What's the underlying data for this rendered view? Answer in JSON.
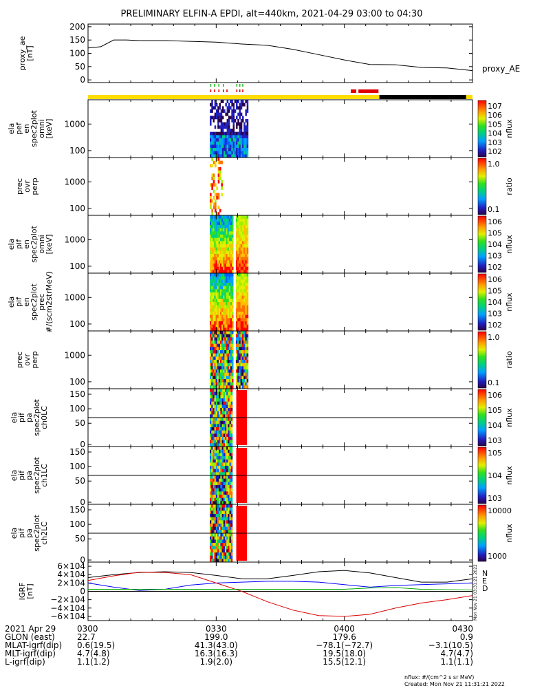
{
  "title": "PRELIMINARY ELFIN-A EPDI, alt=440km, 2021-04-29 03:00 to 04:30",
  "chart_data": [
    {
      "type": "line",
      "ylabel": "proxy_ae\n[nT]",
      "legend": "proxy_AE",
      "ylim": [
        -10,
        210
      ],
      "yticks": [
        "200",
        "150",
        "100",
        "50",
        "0"
      ],
      "x_minutes": [
        0,
        3,
        6,
        9,
        12,
        18,
        24,
        30,
        36,
        42,
        48,
        54,
        60,
        66,
        72,
        78,
        84,
        90
      ],
      "values": [
        120,
        125,
        150,
        150,
        148,
        148,
        145,
        142,
        135,
        130,
        115,
        95,
        75,
        58,
        57,
        47,
        45,
        35
      ]
    },
    {
      "type": "heatmap",
      "ylabel": "ela\npef\nen\nspec2plot\nomni\n[keV]",
      "yticks": [
        "1000",
        "100"
      ],
      "colorbar": {
        "ticks": [
          "10^7",
          "10^6",
          "10^5",
          "10^4",
          "10^3",
          "10^2"
        ],
        "label": "nflux"
      }
    },
    {
      "type": "heatmap",
      "ylabel": "prec\novr\nperp",
      "yticks": [
        "1000",
        "100"
      ],
      "colorbar": {
        "ticks": [
          "1.0",
          "0.1"
        ],
        "label": "ratio"
      }
    },
    {
      "type": "heatmap",
      "ylabel": "ela\npif\nen\nspec2plot\nomni\n[keV]",
      "yticks": [
        "1000",
        "100"
      ],
      "colorbar": {
        "ticks": [
          "10^6",
          "10^5",
          "10^4",
          "10^3",
          "10^2"
        ],
        "label": "nflux"
      }
    },
    {
      "type": "heatmap",
      "ylabel": "ela\npif\nen\nspec2plot\nprec\n#/(scm^2strMeV)",
      "yticks": [
        "1000",
        "100"
      ],
      "colorbar": {
        "ticks": [
          "10^6",
          "10^5",
          "10^4",
          "10^3",
          "10^2"
        ],
        "label": "nflux"
      }
    },
    {
      "type": "heatmap",
      "ylabel": "prec\novr\nperp",
      "yticks": [
        "1000",
        "100"
      ],
      "colorbar": {
        "ticks": [
          "1.0",
          "0.1"
        ],
        "label": "ratio"
      }
    },
    {
      "type": "heatmap",
      "ylabel": "ela\npif\npa\nspec2plot\nch0LC",
      "yticks": [
        "150",
        "100",
        "50",
        "0"
      ],
      "colorbar": {
        "ticks": [
          "10^6",
          "10^5",
          "10^4",
          "10^3"
        ],
        "label": "nflux"
      }
    },
    {
      "type": "heatmap",
      "ylabel": "ela\npif\npa\nspec2plot\nch1LC",
      "yticks": [
        "150",
        "100",
        "50",
        "0"
      ],
      "colorbar": {
        "ticks": [
          "10^5",
          "10^4",
          "10^3"
        ],
        "label": "nflux"
      }
    },
    {
      "type": "heatmap",
      "ylabel": "ela\npif\npa\nspec2plot\nch2LC",
      "yticks": [
        "150",
        "100",
        "50",
        "0"
      ],
      "colorbar": {
        "ticks": [
          "10000",
          "1000"
        ],
        "label": "nflux"
      }
    },
    {
      "type": "line",
      "ylabel": "IGRF\n[nT]",
      "ylim": [
        -70000,
        70000
      ],
      "yticks": [
        "6×10^4",
        "4×10^4",
        "2×10^4",
        "0",
        "−2×10^4",
        "−4×10^4",
        "−6×10^4"
      ],
      "x_minutes": [
        0,
        6,
        12,
        18,
        24,
        30,
        36,
        42,
        48,
        54,
        60,
        66,
        72,
        78,
        84,
        90
      ],
      "series": [
        {
          "name": "N",
          "color": "#000000",
          "values": [
            33000,
            40000,
            45000,
            47000,
            45000,
            38000,
            30000,
            30000,
            38000,
            47000,
            50000,
            44000,
            33000,
            22000,
            22000,
            30000
          ]
        },
        {
          "name": "E",
          "color": "#0000ff",
          "values": [
            20000,
            10000,
            2000,
            5000,
            15000,
            20000,
            22000,
            24000,
            24000,
            22000,
            16000,
            10000,
            14000,
            16000,
            18000,
            20000
          ]
        },
        {
          "name": "D",
          "color": "#dd0000",
          "values": [
            26000,
            37000,
            46000,
            45000,
            40000,
            20000,
            0,
            -25000,
            -45000,
            -58000,
            -60000,
            -55000,
            -40000,
            -28000,
            -20000,
            -10000
          ]
        },
        {
          "name": "",
          "color": "#00aa00",
          "values": [
            5000,
            5000,
            5000,
            5000,
            5000,
            5000,
            5000,
            5000,
            5000,
            5000,
            5000,
            8000,
            9000,
            5000,
            4000,
            3000
          ]
        }
      ]
    }
  ],
  "footer": {
    "rows": [
      {
        "label": "2021 Apr 29",
        "values": [
          "0300",
          "0330",
          "0400",
          "0430"
        ]
      },
      {
        "label": "GLON (east)",
        "values": [
          "22.7",
          "199.0",
          "179.6",
          "0.9"
        ]
      },
      {
        "label": "MLAT-igrf(dip)",
        "values": [
          "0.6(19.5)",
          "41.3(43.0)",
          "−78.1(−72.7)",
          "−3.1(10.5)"
        ]
      },
      {
        "label": "MLT-igrf(dip)",
        "values": [
          "4.7(4.8)",
          "16.3(16.3)",
          "19.5(18.0)",
          "4.7(4.7)"
        ]
      },
      {
        "label": "L-igrf(dip)",
        "values": [
          "1.1(1.2)",
          "1.9(2.0)",
          "15.5(12.1)",
          "1.1(1.1)"
        ]
      }
    ],
    "units_note": "nflux: #/(cm^2 s sr MeV)",
    "created": "Created: Mon Nov 21 11:31:21 2022",
    "side_stamp": "Mon Nov 21 03:31:21 2022"
  },
  "colors": {
    "spec_low": "#1a1aa8",
    "spec_high": "#e00000",
    "status_yellow": "#ffdd00"
  }
}
